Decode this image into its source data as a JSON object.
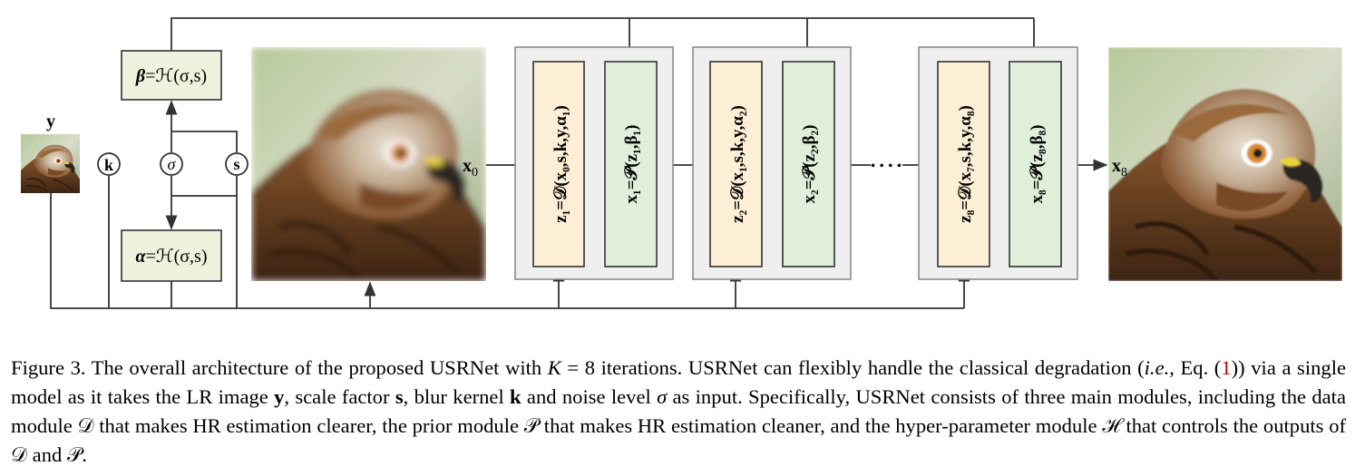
{
  "diagram": {
    "input_label": "y",
    "circle_k": "k",
    "circle_sigma": "σ",
    "circle_s": "s",
    "beta_box": {
      "lhs": "β",
      "rhs": "=ℋ(σ,s)"
    },
    "alpha_box": {
      "lhs": "α",
      "rhs": "=ℋ(σ,s)"
    },
    "x0_label": "x",
    "x0_sub": "0",
    "x8_label": "x",
    "x8_sub": "8",
    "dots": "• • • •",
    "stages": [
      {
        "z_text": "z₁=𝒟(x₀,s,k,y,α₁)",
        "x_text": "x₁=𝒫(z₁,β₁)"
      },
      {
        "z_text": "z₂=𝒟(x₁,s,k,y,α₂)",
        "x_text": "x₂=𝒫(z₂,β₂)"
      },
      {
        "z_text": "z₈=𝒟(x₇,s,k,y,α₈)",
        "x_text": "x₈=𝒫(z₈,β₈)"
      }
    ],
    "colors": {
      "param_box": "#eef1dc",
      "data_box": "#fcefd6",
      "prior_box": "#dfefd9",
      "stage_bg": "#efefef",
      "stage_border": "#8a8a8a",
      "line": "#333333"
    }
  },
  "caption": {
    "p1": "Figure 3. The overall architecture of the proposed USRNet with ",
    "k_var": "K",
    "p2": " = 8 iterations. USRNet can flexibly handle the classical degradation (",
    "ie": "i.e.",
    "p3": ", Eq. (",
    "ref": "1",
    "p4": ")) via a single model as it takes the LR image ",
    "y": "y",
    "p5": ", scale factor ",
    "s": "s",
    "p6": ", blur kernel ",
    "k": "k",
    "p7": " and noise level ",
    "sigma": "σ",
    "p8": " as input. Specifically, USRNet consists of three main modules, including the data module ",
    "D": "𝒟",
    "p9": " that makes HR estimation clearer, the prior module ",
    "P": "𝒫",
    "p10": " that makes HR estimation cleaner, and the hyper-parameter module ",
    "H": "ℋ",
    "p11": " that controls the outputs of ",
    "D2": "𝒟",
    "p12": " and ",
    "P2": "𝒫",
    "p13": "."
  }
}
